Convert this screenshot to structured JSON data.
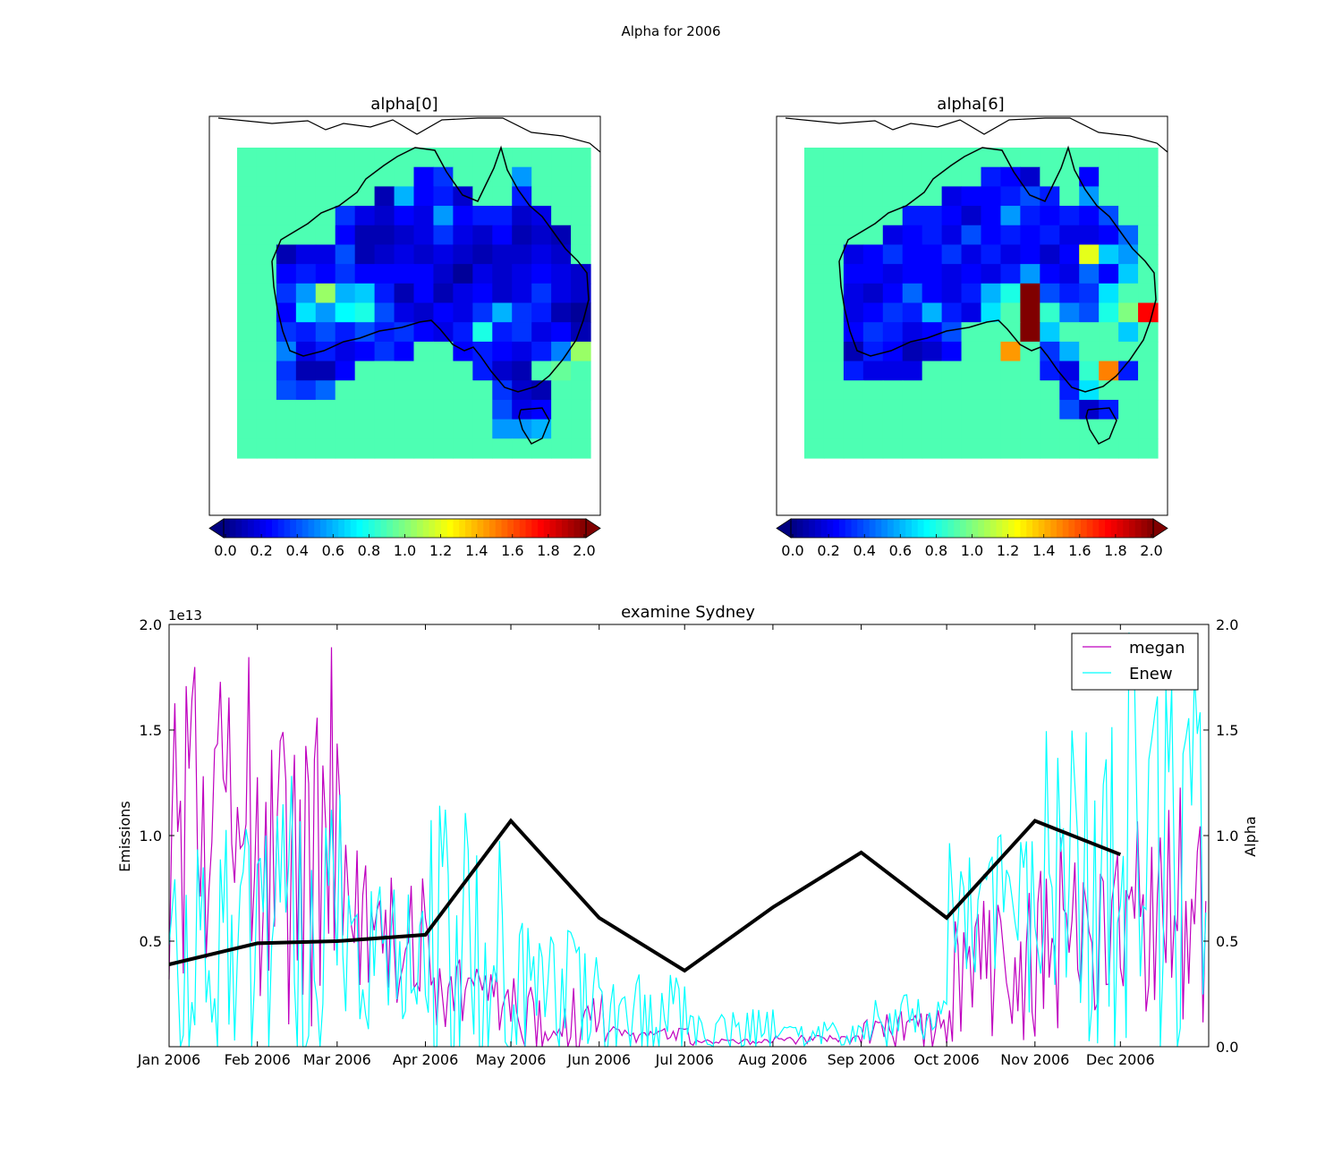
{
  "figure": {
    "suptitle": "Alpha for 2006"
  },
  "maps": [
    {
      "title": "alpha[0]",
      "colorbar": {
        "ticks": [
          "0.0",
          "0.2",
          "0.4",
          "0.6",
          "0.8",
          "1.0",
          "1.2",
          "1.4",
          "1.6",
          "1.8",
          "2.0"
        ],
        "vmin": 0,
        "vmax": 2,
        "colormap": "jet",
        "extend": "both"
      },
      "background_value": 0.9
    },
    {
      "title": "alpha[6]",
      "colorbar": {
        "ticks": [
          "0.0",
          "0.2",
          "0.4",
          "0.6",
          "0.8",
          "1.0",
          "1.2",
          "1.4",
          "1.6",
          "1.8",
          "2.0"
        ],
        "vmin": 0,
        "vmax": 2,
        "colormap": "jet",
        "extend": "both"
      },
      "background_value": 0.9
    }
  ],
  "chart_data": [
    {
      "type": "heatmap",
      "title": "alpha[0]",
      "colormap": "jet",
      "vmin": 0,
      "vmax": 2,
      "background_value": 0.9,
      "rows": [
        [
          0.9,
          0.9,
          0.9,
          0.9,
          0.9,
          0.9,
          0.9,
          0.9,
          0.9,
          0.9,
          0.9,
          0.9,
          0.9,
          0.9,
          0.9,
          0.9,
          0.9,
          0.9
        ],
        [
          0.9,
          0.9,
          0.9,
          0.9,
          0.9,
          0.9,
          0.9,
          0.9,
          0.9,
          0.25,
          0.35,
          0.9,
          0.9,
          0.9,
          0.55,
          0.9,
          0.9,
          0.9
        ],
        [
          0.9,
          0.9,
          0.9,
          0.9,
          0.9,
          0.9,
          0.9,
          0.1,
          0.6,
          0.25,
          0.3,
          0.15,
          0.9,
          0.9,
          0.3,
          0.9,
          0.9,
          0.9
        ],
        [
          0.9,
          0.9,
          0.9,
          0.9,
          0.9,
          0.35,
          0.2,
          0.15,
          0.25,
          0.2,
          0.55,
          0.25,
          0.3,
          0.3,
          0.15,
          0.2,
          0.9,
          0.9
        ],
        [
          0.9,
          0.9,
          0.9,
          0.9,
          0.9,
          0.25,
          0.1,
          0.1,
          0.15,
          0.2,
          0.35,
          0.2,
          0.15,
          0.25,
          0.1,
          0.15,
          0.1,
          0.9
        ],
        [
          0.9,
          0.9,
          0.1,
          0.2,
          0.2,
          0.4,
          0.1,
          0.15,
          0.2,
          0.15,
          0.2,
          0.15,
          0.1,
          0.15,
          0.15,
          0.2,
          0.15,
          0.9
        ],
        [
          0.9,
          0.9,
          0.25,
          0.3,
          0.25,
          0.35,
          0.25,
          0.25,
          0.25,
          0.25,
          0.15,
          0.05,
          0.2,
          0.15,
          0.2,
          0.25,
          0.2,
          0.15
        ],
        [
          0.9,
          0.9,
          0.35,
          0.55,
          1.05,
          0.6,
          0.65,
          0.3,
          0.1,
          0.25,
          0.1,
          0.2,
          0.25,
          0.15,
          0.2,
          0.35,
          0.2,
          0.15
        ],
        [
          0.9,
          0.9,
          0.25,
          0.7,
          0.55,
          0.75,
          0.8,
          0.4,
          0.2,
          0.15,
          0.25,
          0.2,
          0.35,
          0.6,
          0.35,
          0.3,
          0.1,
          0.05
        ],
        [
          0.9,
          0.9,
          0.35,
          0.3,
          0.4,
          0.3,
          0.4,
          0.3,
          0.35,
          0.25,
          0.2,
          0.3,
          0.8,
          0.3,
          0.35,
          0.2,
          0.25,
          0.1
        ],
        [
          0.9,
          0.9,
          0.5,
          0.2,
          0.3,
          0.2,
          0.25,
          0.35,
          0.25,
          0.9,
          0.9,
          0.25,
          0.3,
          0.25,
          0.2,
          0.3,
          0.5,
          1.05
        ],
        [
          0.9,
          0.9,
          0.35,
          0.1,
          0.1,
          0.25,
          0.9,
          0.9,
          0.9,
          0.9,
          0.9,
          0.9,
          0.3,
          0.15,
          0.1,
          0.9,
          0.95,
          0.9
        ],
        [
          0.9,
          0.9,
          0.4,
          0.35,
          0.45,
          0.9,
          0.9,
          0.9,
          0.9,
          0.9,
          0.9,
          0.9,
          0.9,
          0.35,
          0.15,
          0.1,
          0.9,
          0.9
        ],
        [
          0.9,
          0.9,
          0.9,
          0.9,
          0.9,
          0.9,
          0.9,
          0.9,
          0.9,
          0.9,
          0.9,
          0.9,
          0.9,
          0.4,
          0.2,
          0.25,
          0.9,
          0.9
        ],
        [
          0.9,
          0.9,
          0.9,
          0.9,
          0.9,
          0.9,
          0.9,
          0.9,
          0.9,
          0.9,
          0.9,
          0.9,
          0.9,
          0.55,
          0.55,
          0.6,
          0.9,
          0.9
        ],
        [
          0.9,
          0.9,
          0.9,
          0.9,
          0.9,
          0.9,
          0.9,
          0.9,
          0.9,
          0.9,
          0.9,
          0.9,
          0.9,
          0.9,
          0.9,
          0.9,
          0.9,
          0.9
        ]
      ]
    },
    {
      "type": "heatmap",
      "title": "alpha[6]",
      "colormap": "jet",
      "vmin": 0,
      "vmax": 2,
      "background_value": 0.9,
      "rows": [
        [
          0.9,
          0.9,
          0.9,
          0.9,
          0.9,
          0.9,
          0.9,
          0.9,
          0.9,
          0.9,
          0.9,
          0.9,
          0.9,
          0.9,
          0.9,
          0.9,
          0.9,
          0.9
        ],
        [
          0.9,
          0.9,
          0.9,
          0.9,
          0.9,
          0.9,
          0.9,
          0.9,
          0.9,
          0.3,
          0.25,
          0.15,
          0.9,
          0.9,
          0.25,
          0.9,
          0.9,
          0.9
        ],
        [
          0.9,
          0.9,
          0.9,
          0.9,
          0.9,
          0.9,
          0.9,
          0.2,
          0.25,
          0.25,
          0.3,
          0.4,
          0.3,
          0.9,
          0.55,
          0.9,
          0.9,
          0.9
        ],
        [
          0.9,
          0.9,
          0.9,
          0.9,
          0.9,
          0.3,
          0.3,
          0.25,
          0.15,
          0.25,
          0.55,
          0.3,
          0.25,
          0.3,
          0.25,
          0.4,
          0.9,
          0.9
        ],
        [
          0.9,
          0.9,
          0.9,
          0.9,
          0.2,
          0.25,
          0.3,
          0.2,
          0.4,
          0.25,
          0.3,
          0.25,
          0.3,
          0.2,
          0.2,
          0.25,
          0.45,
          0.9
        ],
        [
          0.9,
          0.9,
          0.2,
          0.25,
          0.35,
          0.25,
          0.25,
          0.35,
          0.2,
          0.3,
          0.2,
          0.25,
          0.15,
          0.25,
          1.2,
          0.65,
          0.55,
          0.9
        ],
        [
          0.9,
          0.9,
          0.25,
          0.25,
          0.2,
          0.25,
          0.25,
          0.2,
          0.25,
          0.2,
          0.3,
          0.55,
          0.25,
          0.2,
          0.45,
          0.25,
          0.65,
          0.9
        ],
        [
          0.9,
          0.9,
          0.2,
          0.15,
          0.25,
          0.45,
          0.25,
          0.2,
          0.3,
          0.6,
          0.8,
          2.0,
          0.4,
          0.3,
          0.35,
          0.7,
          0.9,
          0.9
        ],
        [
          0.9,
          0.9,
          0.2,
          0.25,
          0.35,
          0.3,
          0.6,
          0.3,
          0.2,
          0.7,
          0.9,
          2.0,
          0.85,
          0.5,
          0.4,
          0.8,
          1.0,
          1.75
        ],
        [
          0.9,
          0.9,
          0.25,
          0.35,
          0.3,
          0.2,
          0.25,
          0.4,
          0.9,
          0.9,
          0.9,
          2.0,
          0.65,
          0.9,
          0.9,
          0.9,
          0.65,
          0.9
        ],
        [
          0.9,
          0.9,
          0.1,
          0.3,
          0.25,
          0.1,
          0.15,
          0.25,
          0.9,
          0.9,
          1.45,
          0.9,
          0.35,
          0.6,
          0.9,
          0.9,
          0.9,
          0.9
        ],
        [
          0.9,
          0.9,
          0.3,
          0.2,
          0.2,
          0.2,
          0.9,
          0.9,
          0.9,
          0.9,
          0.9,
          0.9,
          0.3,
          0.2,
          0.85,
          1.5,
          0.3,
          0.9
        ],
        [
          0.9,
          0.9,
          0.9,
          0.9,
          0.9,
          0.9,
          0.9,
          0.9,
          0.9,
          0.9,
          0.9,
          0.9,
          0.9,
          0.3,
          0.7,
          0.9,
          0.9,
          0.9
        ],
        [
          0.9,
          0.9,
          0.9,
          0.9,
          0.9,
          0.9,
          0.9,
          0.9,
          0.9,
          0.9,
          0.9,
          0.9,
          0.9,
          0.4,
          0.15,
          0.3,
          0.9,
          0.9
        ],
        [
          0.9,
          0.9,
          0.9,
          0.9,
          0.9,
          0.9,
          0.9,
          0.9,
          0.9,
          0.9,
          0.9,
          0.9,
          0.9,
          0.9,
          0.9,
          0.9,
          0.9,
          0.9
        ],
        [
          0.9,
          0.9,
          0.9,
          0.9,
          0.9,
          0.9,
          0.9,
          0.9,
          0.9,
          0.9,
          0.9,
          0.9,
          0.9,
          0.9,
          0.9,
          0.9,
          0.9,
          0.9
        ]
      ]
    },
    {
      "type": "line",
      "title": "examine Sydney",
      "ylabel": "Emissions",
      "ylabel_right": "Alpha",
      "offset_text": "1e13",
      "ylim": [
        0,
        2.0
      ],
      "ylim_right": [
        0,
        2.0
      ],
      "yticks": [
        "0.5",
        "1.0",
        "1.5",
        "2.0"
      ],
      "yticks_right": [
        "0.0",
        "0.5",
        "1.0",
        "1.5",
        "2.0"
      ],
      "xlim": [
        0,
        365
      ],
      "xtick_days": [
        0,
        31,
        59,
        90,
        120,
        151,
        181,
        212,
        243,
        273,
        304,
        334
      ],
      "xtick_labels": [
        "Jan 2006",
        "Feb 2006",
        "Mar 2006",
        "Apr 2006",
        "May 2006",
        "Jun 2006",
        "Jul 2006",
        "Aug 2006",
        "Sep 2006",
        "Oct 2006",
        "Nov 2006",
        "Dec 2006"
      ],
      "legend": {
        "position": "top-right",
        "entries": [
          "megan",
          "Enew"
        ]
      },
      "series": [
        {
          "name": "megan",
          "color": "#bf00bf",
          "axis": "left",
          "style": "noisy-daily",
          "monthly_mean": [
            0.95,
            0.7,
            0.55,
            0.18,
            0.08,
            0.05,
            0.02,
            0.03,
            0.06,
            0.3,
            0.45,
            0.55
          ],
          "monthly_peak": [
            2.0,
            1.9,
            1.1,
            0.45,
            0.3,
            0.1,
            0.04,
            0.06,
            0.18,
            0.8,
            1.05,
            1.25
          ]
        },
        {
          "name": "Enew",
          "color": "#00ffff",
          "axis": "left",
          "style": "noisy-daily",
          "monthly_mean": [
            0.35,
            0.45,
            0.4,
            0.3,
            0.2,
            0.08,
            0.05,
            0.05,
            0.1,
            0.5,
            0.65,
            0.75
          ],
          "monthly_peak": [
            1.1,
            1.3,
            0.8,
            1.2,
            0.6,
            0.35,
            0.18,
            0.12,
            0.25,
            1.05,
            1.55,
            2.0
          ]
        },
        {
          "name": "",
          "color": "#000000",
          "axis": "right",
          "style": "thick",
          "x": [
            0,
            31,
            59,
            90,
            120,
            151,
            181,
            212,
            243,
            273,
            304,
            334
          ],
          "y": [
            0.39,
            0.49,
            0.5,
            0.53,
            1.07,
            0.61,
            0.36,
            0.66,
            0.92,
            0.61,
            1.07,
            0.91
          ]
        }
      ]
    }
  ]
}
